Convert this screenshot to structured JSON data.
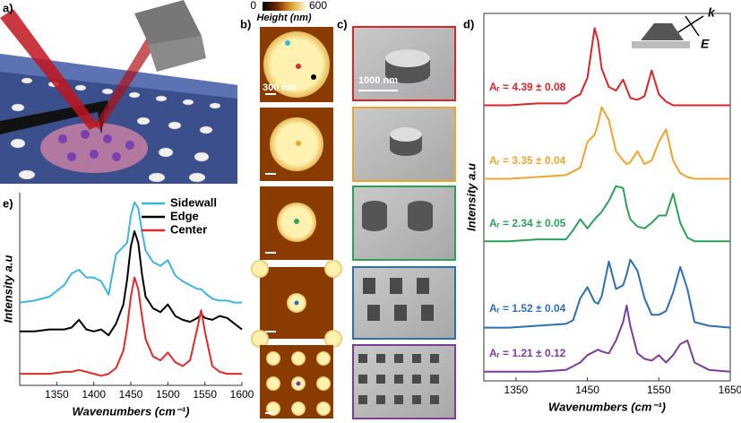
{
  "panels": {
    "a": "a)",
    "b": "b)",
    "c": "c)",
    "d": "d)",
    "e": "e)"
  },
  "colorbar": {
    "min": 0,
    "label": "Height (nm)",
    "max": 600
  },
  "scale_bars": {
    "afm": "300 nm",
    "sem": "1000 nm"
  },
  "inset": {
    "k": "k",
    "E": "E"
  },
  "chart_data": [
    {
      "type": "line",
      "panel": "e",
      "xlabel": "Wavenumbers (cm⁻¹)",
      "ylabel": "Intensity a.u",
      "xlim": [
        1300,
        1600
      ],
      "ylim": [
        0,
        10
      ],
      "xticks": [
        1350,
        1400,
        1450,
        1500,
        1550,
        1600
      ],
      "legend": "upper right",
      "x": [
        1300,
        1320,
        1340,
        1360,
        1370,
        1380,
        1390,
        1400,
        1410,
        1420,
        1430,
        1440,
        1445,
        1450,
        1455,
        1460,
        1465,
        1470,
        1480,
        1490,
        1500,
        1510,
        1520,
        1530,
        1540,
        1545,
        1550,
        1560,
        1570,
        1580,
        1590,
        1600
      ],
      "series": [
        {
          "name": "Sidewall",
          "color": "#3fb5dc",
          "values": [
            4.3,
            4.4,
            4.6,
            5.2,
            5.8,
            6.0,
            5.6,
            5.6,
            5.4,
            4.7,
            6.8,
            7.2,
            7.4,
            8.8,
            9.5,
            9.2,
            8.0,
            7.0,
            6.4,
            6.2,
            6.5,
            5.7,
            5.4,
            5.2,
            5.0,
            5.0,
            4.8,
            4.5,
            4.4,
            4.4,
            4.3,
            4.3
          ]
        },
        {
          "name": "Edge",
          "color": "#000000",
          "values": [
            2.8,
            2.8,
            2.9,
            2.9,
            3.0,
            3.4,
            2.9,
            2.8,
            2.9,
            2.6,
            3.2,
            4.2,
            5.5,
            7.2,
            8.0,
            7.4,
            5.8,
            4.6,
            4.0,
            3.8,
            4.2,
            3.6,
            3.4,
            3.3,
            3.5,
            3.7,
            3.5,
            3.4,
            3.6,
            3.5,
            3.2,
            2.9
          ]
        },
        {
          "name": "Center",
          "color": "#e02a2a",
          "values": [
            0.6,
            0.6,
            0.6,
            0.7,
            0.7,
            0.8,
            0.7,
            0.6,
            0.5,
            0.6,
            0.9,
            1.8,
            3.0,
            4.6,
            5.6,
            5.0,
            3.6,
            2.4,
            1.5,
            1.3,
            1.7,
            1.2,
            1.0,
            1.3,
            3.0,
            3.9,
            2.8,
            1.0,
            0.7,
            0.6,
            0.6,
            0.6
          ]
        }
      ]
    },
    {
      "type": "line",
      "panel": "d",
      "xlabel": "Wavenumbers (cm⁻¹)",
      "ylabel": "Intensity a.u",
      "xlim": [
        1305,
        1650
      ],
      "ylim": [
        0,
        20
      ],
      "xticks": [
        1350,
        1450,
        1550,
        1650
      ],
      "x": [
        1305,
        1340,
        1380,
        1420,
        1430,
        1440,
        1450,
        1460,
        1465,
        1470,
        1480,
        1490,
        1500,
        1505,
        1510,
        1520,
        1530,
        1540,
        1550,
        1560,
        1570,
        1580,
        1590,
        1600,
        1620,
        1650
      ],
      "series": [
        {
          "name": "Aᵣ = 4.39 ± 0.08",
          "color": "#d6262b",
          "values": [
            15.0,
            15.0,
            15.1,
            15.1,
            15.4,
            15.6,
            16.5,
            19.2,
            18.5,
            17.0,
            16.0,
            15.8,
            16.4,
            15.9,
            15.4,
            15.3,
            15.5,
            16.9,
            15.6,
            15.2,
            15.0,
            15.0,
            15.0,
            15.0,
            15.0,
            15.0
          ]
        },
        {
          "name": "Aᵣ = 3.35 ± 0.04",
          "color": "#f0a430",
          "values": [
            11.0,
            11.0,
            11.1,
            11.2,
            11.4,
            11.6,
            13.0,
            13.4,
            14.0,
            14.9,
            14.2,
            12.5,
            12.0,
            11.8,
            11.9,
            12.5,
            11.8,
            12.0,
            13.0,
            13.7,
            12.0,
            11.3,
            11.1,
            11.0,
            11.0,
            11.0
          ]
        },
        {
          "name": "Aᵣ = 2.34 ± 0.05",
          "color": "#2fa05a",
          "values": [
            7.6,
            7.6,
            7.7,
            7.7,
            8.2,
            8.8,
            8.3,
            8.8,
            9.0,
            9.2,
            9.8,
            10.6,
            10.5,
            9.5,
            8.8,
            8.4,
            8.3,
            8.6,
            9.0,
            9.0,
            10.2,
            8.6,
            7.8,
            7.6,
            7.6,
            7.6
          ]
        },
        {
          "name": "Aᵣ = 1.52 ± 0.04",
          "color": "#2f6fad",
          "values": [
            2.9,
            2.9,
            3.0,
            3.1,
            3.3,
            4.5,
            5.1,
            4.3,
            4.2,
            4.6,
            6.5,
            5.0,
            5.2,
            5.8,
            6.6,
            6.0,
            4.5,
            3.6,
            3.6,
            3.8,
            4.8,
            6.2,
            5.0,
            3.2,
            3.0,
            2.9
          ]
        },
        {
          "name": "Aᵣ = 1.21 ± 0.12",
          "color": "#7b3d98",
          "values": [
            0.5,
            0.5,
            0.5,
            0.6,
            0.8,
            1.0,
            1.4,
            1.6,
            1.7,
            1.6,
            1.5,
            2.2,
            3.2,
            4.1,
            3.0,
            1.5,
            1.2,
            1.1,
            1.4,
            1.0,
            1.4,
            2.0,
            2.2,
            1.0,
            0.6,
            0.5
          ]
        }
      ]
    }
  ]
}
